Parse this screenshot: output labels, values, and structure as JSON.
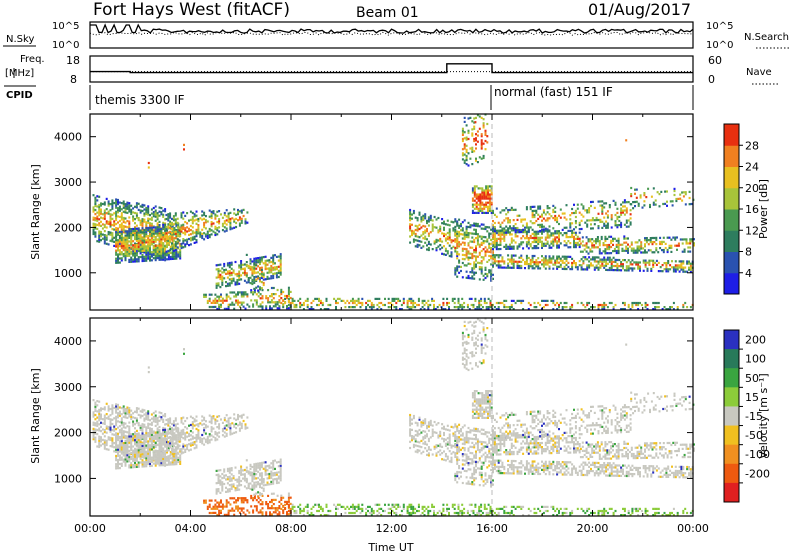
{
  "header": {
    "station": "Fort Hays West (fitACF)",
    "beam": "Beam 01",
    "date": "01/Aug/2017"
  },
  "left_labels": {
    "nsky": "N.Sky",
    "freq_line1": "Freq.",
    "freq_line2": "[MHz]",
    "cpid": "CPID"
  },
  "right_labels": {
    "nsearch": "N.Search",
    "nave": "Nave"
  },
  "cpid_labels": [
    "themis 3300 IF",
    "normal (fast) 151 IF"
  ],
  "chart_data": [
    {
      "type": "line",
      "name": "noise",
      "ylabels": [
        "10^5",
        "10^0"
      ],
      "y2labels": [
        "10^5",
        "10^0"
      ],
      "series": [
        {
          "name": "N.Sky",
          "style": "solid",
          "level": 0.35
        },
        {
          "name": "N.Search",
          "style": "dotted",
          "level": 0.45
        }
      ]
    },
    {
      "type": "line",
      "name": "frequency",
      "yticks_left": [
        "18",
        "8"
      ],
      "yticks_right": [
        "60",
        "0"
      ],
      "series": [
        {
          "name": "Freq.",
          "style": "solid",
          "x": [
            0,
            1.6,
            1.6,
            14.2,
            14.2,
            16.0,
            16.0,
            24
          ],
          "y": [
            12,
            12,
            11.6,
            11.6,
            15,
            15,
            11.6,
            11.6
          ]
        },
        {
          "name": "Nave",
          "style": "dotted",
          "x": [
            0,
            24
          ],
          "y": [
            12,
            12
          ]
        }
      ]
    },
    {
      "type": "heatmap",
      "name": "power",
      "ylabel": "Slant Range [km]",
      "yticks": [
        "1000",
        "2000",
        "3000",
        "4000"
      ],
      "ylim": [
        180,
        4500
      ],
      "xlim": [
        0,
        24
      ],
      "colorbar_label": "Power [dB]",
      "colorbar_ticks": [
        "4",
        "8",
        "12",
        "16",
        "20",
        "24",
        "28"
      ],
      "colorbar_range": [
        0,
        30
      ],
      "colors": [
        "#1e1ee6",
        "#2a52b0",
        "#2e7d5e",
        "#4a9a50",
        "#a8c43a",
        "#e8c020",
        "#f08020",
        "#e83010"
      ]
    },
    {
      "type": "heatmap",
      "name": "velocity",
      "ylabel": "Slant Range [km]",
      "yticks": [
        "1000",
        "2000",
        "3000",
        "4000"
      ],
      "ylim": [
        180,
        4500
      ],
      "xlim": [
        0,
        24
      ],
      "xticks": [
        "00:00",
        "04:00",
        "08:00",
        "12:00",
        "16:00",
        "20:00",
        "00:00"
      ],
      "xlabel": "Time UT",
      "colorbar_label": "Velocity [m s⁻¹]",
      "colorbar_ticks": [
        "200",
        "100",
        "50",
        "15",
        "-15",
        "-50",
        "-100",
        "-200"
      ],
      "colors": [
        "#2a30c0",
        "#287a5a",
        "#3aa540",
        "#8ccc3a",
        "#c8c8c0",
        "#f0c020",
        "#f09020",
        "#ee5a10",
        "#e02020"
      ]
    }
  ]
}
